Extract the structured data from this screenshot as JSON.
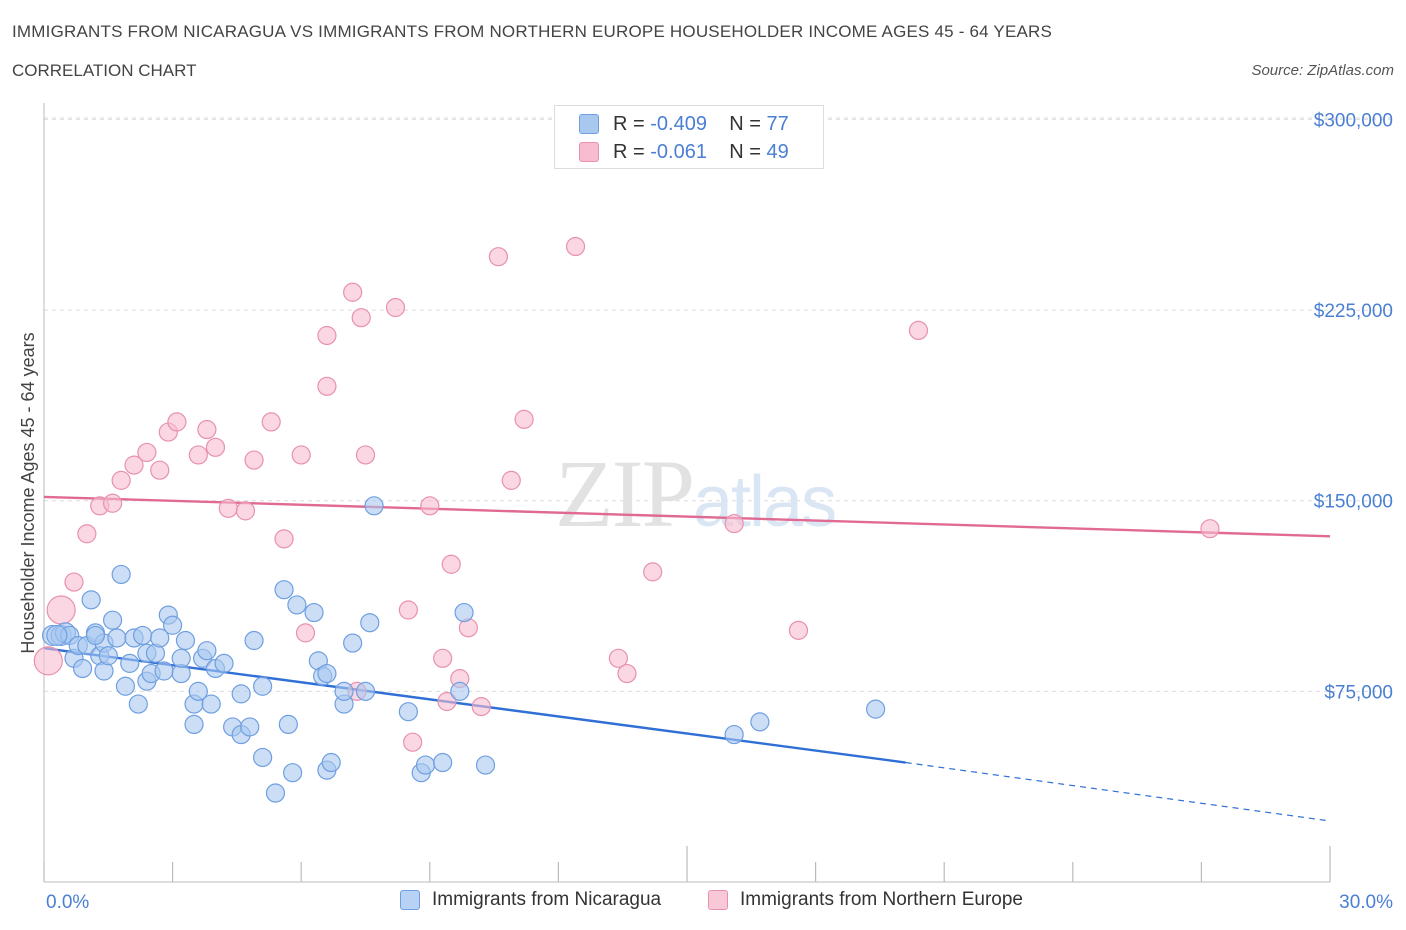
{
  "title": "IMMIGRANTS FROM NICARAGUA VS IMMIGRANTS FROM NORTHERN EUROPE HOUSEHOLDER INCOME AGES 45 - 64 YEARS",
  "subtitle": "CORRELATION CHART",
  "source": "Source: ZipAtlas.com",
  "watermark": "ZIPatlas",
  "legend_stats": [
    {
      "r_label": "R =",
      "r_value": "-0.409",
      "n_label": "N =",
      "n_value": "77",
      "color": "#a9c8f0",
      "border": "#6f9fe0"
    },
    {
      "r_label": "R =",
      "r_value": "-0.061",
      "n_label": "N =",
      "n_value": "49",
      "color": "#f7bcd0",
      "border": "#e891ae"
    }
  ],
  "bottom_legend": [
    {
      "label": "Immigrants from Nicaragua",
      "color": "#b8d2f5",
      "border": "#6f9fe0"
    },
    {
      "label": "Immigrants from Northern Europe",
      "color": "#f9c8d7",
      "border": "#e891ae"
    }
  ],
  "chart_data": {
    "type": "scatter",
    "xlabel": "",
    "ylabel": "Householder Income Ages 45 - 64 years",
    "xlim": [
      0,
      30
    ],
    "ylim": [
      0,
      310000
    ],
    "x_tick_labels": [
      "0.0%",
      "30.0%"
    ],
    "y_ticks": [
      75000,
      150000,
      225000,
      300000
    ],
    "y_tick_labels": [
      "$75,000",
      "$150,000",
      "$225,000",
      "$300,000"
    ],
    "grid": true,
    "series": [
      {
        "name": "Immigrants from Nicaragua",
        "color": "#a9c8f0",
        "edge": "#6f9fe0",
        "line_color": "#2f6fd6",
        "trend": {
          "x0": 0,
          "y0": 92000,
          "x1": 20.1,
          "y1": 47000,
          "x_dash_end": 30,
          "y_dash_end": 24000
        },
        "points": [
          [
            0.2,
            97000
          ],
          [
            0.4,
            97000
          ],
          [
            0.5,
            98000
          ],
          [
            0.6,
            97000
          ],
          [
            0.7,
            88000
          ],
          [
            0.8,
            93000
          ],
          [
            0.9,
            84000
          ],
          [
            1.0,
            93000
          ],
          [
            1.1,
            111000
          ],
          [
            1.2,
            98000
          ],
          [
            1.3,
            89000
          ],
          [
            1.4,
            94000
          ],
          [
            1.4,
            83000
          ],
          [
            1.5,
            89000
          ],
          [
            1.6,
            103000
          ],
          [
            1.7,
            96000
          ],
          [
            1.8,
            121000
          ],
          [
            1.9,
            77000
          ],
          [
            2.0,
            86000
          ],
          [
            2.1,
            96000
          ],
          [
            2.2,
            70000
          ],
          [
            2.3,
            97000
          ],
          [
            2.4,
            90000
          ],
          [
            2.4,
            79000
          ],
          [
            2.5,
            82000
          ],
          [
            2.6,
            90000
          ],
          [
            2.7,
            96000
          ],
          [
            2.8,
            83000
          ],
          [
            2.9,
            105000
          ],
          [
            3.0,
            101000
          ],
          [
            3.2,
            82000
          ],
          [
            3.2,
            88000
          ],
          [
            3.3,
            95000
          ],
          [
            3.5,
            70000
          ],
          [
            3.5,
            62000
          ],
          [
            3.6,
            75000
          ],
          [
            3.7,
            88000
          ],
          [
            3.8,
            91000
          ],
          [
            3.9,
            70000
          ],
          [
            4.0,
            84000
          ],
          [
            4.2,
            86000
          ],
          [
            4.4,
            61000
          ],
          [
            4.6,
            74000
          ],
          [
            4.6,
            58000
          ],
          [
            4.8,
            61000
          ],
          [
            4.9,
            95000
          ],
          [
            5.1,
            49000
          ],
          [
            5.1,
            77000
          ],
          [
            5.4,
            35000
          ],
          [
            5.6,
            115000
          ],
          [
            5.7,
            62000
          ],
          [
            5.8,
            43000
          ],
          [
            5.9,
            109000
          ],
          [
            6.3,
            106000
          ],
          [
            6.4,
            87000
          ],
          [
            6.5,
            81000
          ],
          [
            6.6,
            82000
          ],
          [
            6.6,
            44000
          ],
          [
            6.7,
            47000
          ],
          [
            7.0,
            70000
          ],
          [
            7.0,
            75000
          ],
          [
            7.2,
            94000
          ],
          [
            7.5,
            75000
          ],
          [
            7.6,
            102000
          ],
          [
            7.7,
            148000
          ],
          [
            8.5,
            67000
          ],
          [
            8.8,
            43000
          ],
          [
            8.9,
            46000
          ],
          [
            9.3,
            47000
          ],
          [
            9.7,
            75000
          ],
          [
            9.8,
            106000
          ],
          [
            10.3,
            46000
          ],
          [
            16.1,
            58000
          ],
          [
            16.7,
            63000
          ],
          [
            19.4,
            68000
          ],
          [
            0.3,
            97000
          ],
          [
            1.2,
            97000
          ]
        ]
      },
      {
        "name": "Immigrants from Northern Europe",
        "color": "#f7bcd0",
        "edge": "#e891ae",
        "line_color": "#e06a92",
        "trend": {
          "x0": 0,
          "y0": 151500,
          "x1": 30,
          "y1": 136000
        },
        "points": [
          [
            0.1,
            87000
          ],
          [
            0.4,
            107000
          ],
          [
            0.7,
            118000
          ],
          [
            1.0,
            137000
          ],
          [
            1.3,
            148000
          ],
          [
            1.6,
            149000
          ],
          [
            1.8,
            158000
          ],
          [
            2.1,
            164000
          ],
          [
            2.4,
            169000
          ],
          [
            2.7,
            162000
          ],
          [
            2.9,
            177000
          ],
          [
            3.1,
            181000
          ],
          [
            3.6,
            168000
          ],
          [
            3.8,
            178000
          ],
          [
            4.0,
            171000
          ],
          [
            4.3,
            147000
          ],
          [
            4.7,
            146000
          ],
          [
            4.9,
            166000
          ],
          [
            5.3,
            181000
          ],
          [
            5.6,
            135000
          ],
          [
            6.0,
            168000
          ],
          [
            6.1,
            98000
          ],
          [
            6.6,
            215000
          ],
          [
            6.6,
            195000
          ],
          [
            7.2,
            232000
          ],
          [
            7.3,
            75000
          ],
          [
            7.4,
            222000
          ],
          [
            7.5,
            168000
          ],
          [
            8.2,
            226000
          ],
          [
            8.5,
            107000
          ],
          [
            8.6,
            55000
          ],
          [
            9.0,
            148000
          ],
          [
            9.3,
            88000
          ],
          [
            9.4,
            71000
          ],
          [
            9.5,
            125000
          ],
          [
            9.7,
            80000
          ],
          [
            9.9,
            100000
          ],
          [
            10.2,
            69000
          ],
          [
            10.6,
            246000
          ],
          [
            10.9,
            158000
          ],
          [
            11.2,
            182000
          ],
          [
            12.4,
            250000
          ],
          [
            13.4,
            88000
          ],
          [
            13.6,
            82000
          ],
          [
            14.2,
            122000
          ],
          [
            16.1,
            141000
          ],
          [
            17.6,
            99000
          ],
          [
            20.4,
            217000
          ],
          [
            27.2,
            139000
          ]
        ]
      }
    ]
  }
}
